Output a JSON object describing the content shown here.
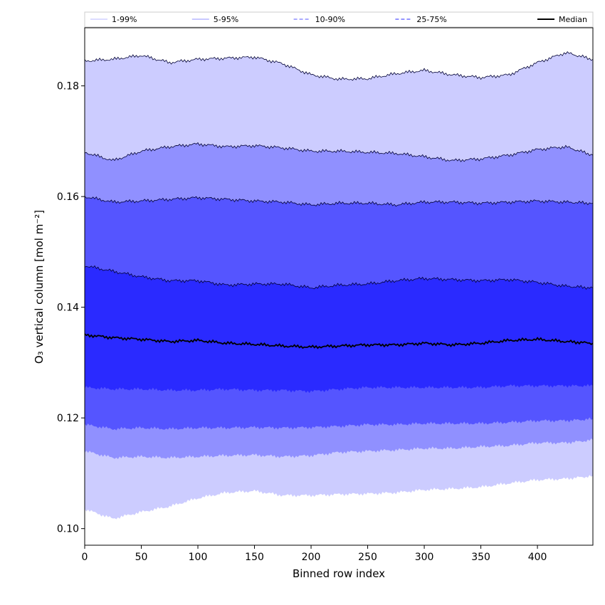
{
  "chart_data": {
    "type": "area",
    "xlabel": "Binned row index",
    "ylabel": "O₃ vertical column [mol m⁻²]",
    "xlim": [
      0,
      449
    ],
    "ylim": [
      0.097,
      0.1905
    ],
    "x_ticks": [
      0,
      50,
      100,
      150,
      200,
      250,
      300,
      350,
      400
    ],
    "y_ticks": [
      0.1,
      0.12,
      0.14,
      0.16,
      0.18
    ],
    "y_tick_labels": [
      "0.10",
      "0.12",
      "0.14",
      "0.16",
      "0.18"
    ],
    "legend": {
      "placement": "top",
      "entries": [
        {
          "label": "1-99%",
          "color": "#ccccff",
          "style": "solid"
        },
        {
          "label": "5-95%",
          "color": "#9090ff",
          "style": "solid"
        },
        {
          "label": "10-90%",
          "color": "#5555ff",
          "style": "dashed"
        },
        {
          "label": "25-75%",
          "color": "#2a2aff",
          "style": "dashed"
        },
        {
          "label": "Median",
          "color": "#000000",
          "style": "solid"
        }
      ]
    },
    "x": [
      0,
      25,
      50,
      75,
      100,
      125,
      150,
      175,
      200,
      225,
      250,
      275,
      300,
      325,
      350,
      375,
      400,
      425,
      449
    ],
    "bands": [
      {
        "name": "1-99%",
        "color": "#ccccff",
        "upper": [
          0.1845,
          0.1848,
          0.1855,
          0.1842,
          0.1848,
          0.185,
          0.1852,
          0.184,
          0.182,
          0.1812,
          0.1813,
          0.1822,
          0.1828,
          0.182,
          0.1815,
          0.182,
          0.1842,
          0.186,
          0.1848
        ],
        "lower": [
          0.1035,
          0.1018,
          0.103,
          0.104,
          0.1055,
          0.1065,
          0.1068,
          0.106,
          0.106,
          0.1062,
          0.1063,
          0.1065,
          0.107,
          0.1072,
          0.1075,
          0.1082,
          0.1088,
          0.109,
          0.1095
        ]
      },
      {
        "name": "5-95%",
        "color": "#9090ff",
        "upper": [
          0.168,
          0.1665,
          0.1682,
          0.169,
          0.1695,
          0.169,
          0.1692,
          0.1688,
          0.1682,
          0.1682,
          0.168,
          0.1678,
          0.1672,
          0.1665,
          0.1668,
          0.1675,
          0.1685,
          0.169,
          0.1675
        ],
        "lower": [
          0.114,
          0.1128,
          0.113,
          0.1128,
          0.113,
          0.1132,
          0.1133,
          0.113,
          0.1132,
          0.1138,
          0.114,
          0.1142,
          0.1145,
          0.1145,
          0.1148,
          0.115,
          0.1155,
          0.1155,
          0.116
        ]
      },
      {
        "name": "10-90%",
        "color": "#5555ff",
        "upper": [
          0.16,
          0.159,
          0.1592,
          0.1595,
          0.1598,
          0.1595,
          0.1592,
          0.159,
          0.1585,
          0.1588,
          0.1588,
          0.1585,
          0.159,
          0.159,
          0.1588,
          0.159,
          0.1592,
          0.159,
          0.1588
        ],
        "lower": [
          0.1188,
          0.118,
          0.1182,
          0.118,
          0.1182,
          0.1182,
          0.1183,
          0.1182,
          0.1183,
          0.1185,
          0.1188,
          0.1188,
          0.119,
          0.119,
          0.119,
          0.1192,
          0.1195,
          0.1195,
          0.1198
        ]
      },
      {
        "name": "25-75%",
        "color": "#2a2aff",
        "upper": [
          0.1475,
          0.1465,
          0.1455,
          0.1448,
          0.1448,
          0.144,
          0.1442,
          0.1442,
          0.1435,
          0.144,
          0.1442,
          0.1448,
          0.1452,
          0.145,
          0.1448,
          0.145,
          0.1445,
          0.1438,
          0.1435
        ],
        "lower": [
          0.1255,
          0.1252,
          0.1252,
          0.125,
          0.125,
          0.1252,
          0.125,
          0.125,
          0.1248,
          0.1252,
          0.1255,
          0.1255,
          0.1255,
          0.1255,
          0.1255,
          0.1258,
          0.1258,
          0.1258,
          0.1258
        ]
      }
    ],
    "median": {
      "name": "Median",
      "color": "#000000",
      "values": [
        0.135,
        0.1345,
        0.1342,
        0.1338,
        0.134,
        0.1335,
        0.1333,
        0.133,
        0.1328,
        0.133,
        0.1332,
        0.1332,
        0.1335,
        0.1332,
        0.1335,
        0.134,
        0.1342,
        0.1338,
        0.1335
      ]
    },
    "grid": false
  }
}
